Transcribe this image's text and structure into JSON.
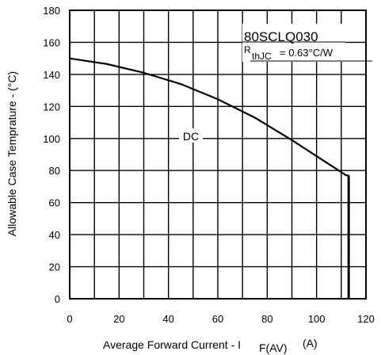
{
  "chart_data": {
    "type": "line",
    "title": "",
    "xlabel": {
      "main": "Average Forward Current  - I",
      "sub": "F(AV)",
      "unit": "(A)"
    },
    "ylabel": "Allowable Case Temprature - (°C)",
    "xlim": [
      0,
      120
    ],
    "ylim": [
      0,
      180
    ],
    "xticks": [
      0,
      20,
      40,
      60,
      80,
      100,
      120
    ],
    "yticks": [
      0,
      20,
      40,
      60,
      80,
      100,
      120,
      140,
      160,
      180
    ],
    "x_minor_step": 10,
    "grid": true,
    "annotations": {
      "part": "80SCLQ030",
      "rth_symbol": "R",
      "rth_sub": "thJC",
      "rth_value": " =  0.63°C/W"
    },
    "series": [
      {
        "name": "DC",
        "x": [
          0,
          15,
          30,
          45,
          60,
          75,
          90,
          100,
          108,
          110.5,
          112,
          113
        ],
        "y": [
          150,
          146.5,
          141,
          134,
          124.5,
          113,
          99,
          89,
          81,
          78.5,
          77,
          77
        ],
        "drop_to_zero_at": 113
      }
    ]
  }
}
